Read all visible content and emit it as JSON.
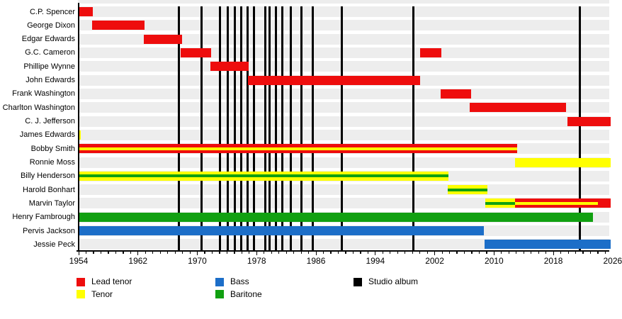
{
  "chart_data": {
    "type": "timeline",
    "description": "Band members timeline with roles and studio album markers",
    "x_axis": {
      "start": 1954,
      "end": 2025.7,
      "label_interval": 8,
      "minor_tick_interval": 1,
      "labels": [
        "1954",
        "1962",
        "1970",
        "1978",
        "1986",
        "1994",
        "2002",
        "2010",
        "2018",
        "2026"
      ]
    },
    "colors": {
      "lead_tenor": "#ee0d0d",
      "tenor": "#ffff00",
      "bass": "#1c6ec8",
      "baritone": "#11a011",
      "studio_album": "#000000",
      "row_band": "#ededed",
      "axis": "#000000"
    },
    "members": [
      {
        "name": "C.P. Spencer",
        "segments": [
          {
            "from": 1954,
            "to": 1955.9,
            "roles": [
              "lead_tenor"
            ]
          }
        ]
      },
      {
        "name": "George Dixon",
        "segments": [
          {
            "from": 1955.8,
            "to": 1962.9,
            "roles": [
              "lead_tenor"
            ]
          }
        ]
      },
      {
        "name": "Edgar Edwards",
        "segments": [
          {
            "from": 1962.8,
            "to": 1967.9,
            "roles": [
              "lead_tenor"
            ]
          }
        ]
      },
      {
        "name": "G.C. Cameron",
        "segments": [
          {
            "from": 1967.8,
            "to": 1971.9,
            "roles": [
              "lead_tenor"
            ]
          },
          {
            "from": 2000,
            "to": 2002.9,
            "roles": [
              "lead_tenor"
            ]
          }
        ]
      },
      {
        "name": "Phillipe Wynne",
        "segments": [
          {
            "from": 1971.8,
            "to": 1976.9,
            "roles": [
              "lead_tenor"
            ]
          }
        ]
      },
      {
        "name": "John Edwards",
        "segments": [
          {
            "from": 1976.8,
            "to": 2000,
            "roles": [
              "lead_tenor"
            ]
          }
        ]
      },
      {
        "name": "Frank Washington",
        "segments": [
          {
            "from": 2002.8,
            "to": 2006.9,
            "roles": [
              "lead_tenor"
            ]
          }
        ]
      },
      {
        "name": "Charlton Washington",
        "segments": [
          {
            "from": 2006.7,
            "to": 2019.7,
            "roles": [
              "lead_tenor"
            ]
          }
        ]
      },
      {
        "name": "C. J. Jefferson",
        "segments": [
          {
            "from": 2019.9,
            "to": 2025.7,
            "roles": [
              "lead_tenor"
            ]
          }
        ]
      },
      {
        "name": "James Edwards",
        "segments": [
          {
            "from": 1954,
            "to": 1954.3,
            "roles": [
              "tenor"
            ]
          }
        ]
      },
      {
        "name": "Bobby Smith",
        "segments": [
          {
            "from": 1954,
            "to": 2013.1,
            "roles": [
              "lead_tenor",
              "tenor"
            ]
          }
        ]
      },
      {
        "name": "Ronnie Moss",
        "segments": [
          {
            "from": 2012.8,
            "to": 2025.7,
            "roles": [
              "tenor"
            ]
          }
        ]
      },
      {
        "name": "Billy Henderson",
        "segments": [
          {
            "from": 1954,
            "to": 2003.9,
            "roles": [
              "tenor",
              "baritone"
            ]
          }
        ]
      },
      {
        "name": "Harold Bonhart",
        "segments": [
          {
            "from": 2003.8,
            "to": 2009.1,
            "roles": [
              "tenor",
              "baritone"
            ]
          }
        ]
      },
      {
        "name": "Marvin Taylor",
        "segments": [
          {
            "from": 2008.8,
            "to": 2012.8,
            "roles": [
              "tenor",
              "baritone"
            ]
          },
          {
            "from": 2012.8,
            "to": 2024,
            "roles": [
              "lead_tenor",
              "tenor"
            ]
          },
          {
            "from": 2024,
            "to": 2025.7,
            "roles": [
              "lead_tenor"
            ]
          }
        ]
      },
      {
        "name": "Henry Fambrough",
        "segments": [
          {
            "from": 1954,
            "to": 2023.3,
            "roles": [
              "baritone"
            ]
          }
        ]
      },
      {
        "name": "Pervis Jackson",
        "segments": [
          {
            "from": 1954,
            "to": 2008.6,
            "roles": [
              "bass"
            ]
          }
        ]
      },
      {
        "name": "Jessie Peck",
        "segments": [
          {
            "from": 2008.7,
            "to": 2025.7,
            "roles": [
              "bass"
            ]
          }
        ]
      }
    ],
    "albums": {
      "label": "Studio album",
      "years": [
        1967.5,
        1970.6,
        1973.1,
        1974.1,
        1975.1,
        1975.9,
        1976.8,
        1977.6,
        1979.2,
        1979.7,
        1980.6,
        1981.5,
        1982.6,
        1984.0,
        1985.6,
        1989.5,
        1999.1,
        2021.6
      ]
    },
    "legend_position": "bottom"
  },
  "legend": {
    "items": [
      {
        "label": "Lead tenor",
        "role": "lead_tenor",
        "col": 0,
        "row": 0
      },
      {
        "label": "Tenor",
        "role": "tenor",
        "col": 0,
        "row": 1
      },
      {
        "label": "Bass",
        "role": "bass",
        "col": 1,
        "row": 0
      },
      {
        "label": "Baritone",
        "role": "baritone",
        "col": 1,
        "row": 1
      },
      {
        "label": "Studio album",
        "role": "studio_album",
        "col": 2,
        "row": 0
      }
    ]
  }
}
